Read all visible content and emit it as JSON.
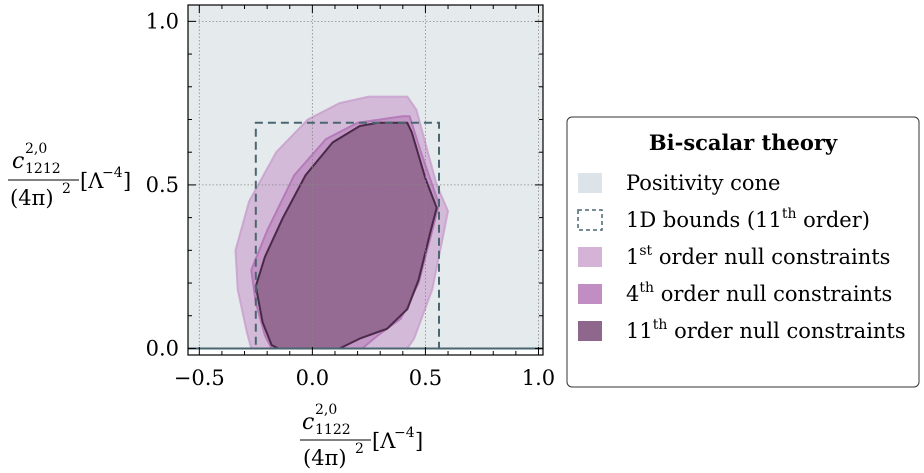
{
  "chart_data": {
    "type": "area",
    "xlim": [
      -0.55,
      1.02
    ],
    "ylim": [
      -0.02,
      1.05
    ],
    "xticks": [
      -0.5,
      0.0,
      0.5,
      1.0
    ],
    "yticks": [
      0.0,
      0.5,
      1.0
    ],
    "xtick_labels": [
      "−0.5",
      "0.0",
      "0.5",
      "1.0"
    ],
    "ytick_labels": [
      "0.0",
      "0.5",
      "1.0"
    ],
    "grid": true,
    "xlabel": {
      "num": "c",
      "sup": "2,0",
      "sub": "1122",
      "den": "(4π)",
      "den_sup": "2",
      "unit": "[Λ",
      "unit_sup": "−4",
      "unit_end": "]"
    },
    "ylabel": {
      "num": "c",
      "sup": "2,0",
      "sub": "1212",
      "den": "(4π)",
      "den_sup": "2",
      "unit": "[Λ",
      "unit_sup": "−4",
      "unit_end": "]"
    },
    "legend": {
      "title": "Bi-scalar theory",
      "placement": "right",
      "entries": [
        {
          "key": "cone",
          "text": "Positivity cone"
        },
        {
          "key": "bounds1d",
          "text": "1D bounds (11",
          "sup": "th",
          "tail": " order)"
        },
        {
          "key": "order1",
          "text": "1",
          "sup": "st",
          "tail": " order null constraints"
        },
        {
          "key": "order4",
          "text": "4",
          "sup": "th",
          "tail": " order null constraints"
        },
        {
          "key": "order11",
          "text": "11",
          "sup": "th",
          "tail": " order null constraints"
        }
      ]
    },
    "series": [
      {
        "key": "cone",
        "kind": "region",
        "color": "#cfd8df",
        "points": [
          [
            -0.55,
            0.0
          ],
          [
            1.02,
            0.0
          ],
          [
            1.02,
            1.05
          ],
          [
            -0.55,
            1.05
          ]
        ]
      },
      {
        "key": "bounds1d",
        "kind": "box",
        "color": "#4a6670",
        "points": [
          [
            -0.25,
            0.0
          ],
          [
            0.56,
            0.0
          ],
          [
            0.56,
            0.69
          ],
          [
            -0.25,
            0.69
          ]
        ]
      },
      {
        "key": "order1",
        "kind": "region",
        "color": "#c79ac9",
        "points": [
          [
            -0.34,
            0.3
          ],
          [
            -0.28,
            0.45
          ],
          [
            -0.16,
            0.6
          ],
          [
            -0.02,
            0.7
          ],
          [
            0.12,
            0.75
          ],
          [
            0.25,
            0.77
          ],
          [
            0.42,
            0.77
          ],
          [
            0.46,
            0.73
          ],
          [
            0.55,
            0.5
          ],
          [
            0.6,
            0.42
          ],
          [
            0.58,
            0.35
          ],
          [
            0.53,
            0.18
          ],
          [
            0.45,
            0.03
          ],
          [
            0.42,
            0.0
          ],
          [
            -0.27,
            0.0
          ],
          [
            -0.29,
            0.05
          ],
          [
            -0.33,
            0.18
          ],
          [
            -0.34,
            0.3
          ]
        ]
      },
      {
        "key": "order4",
        "kind": "region",
        "color": "#b57ab8",
        "points": [
          [
            -0.27,
            0.24
          ],
          [
            -0.2,
            0.36
          ],
          [
            -0.08,
            0.53
          ],
          [
            0.06,
            0.64
          ],
          [
            0.2,
            0.69
          ],
          [
            0.4,
            0.71
          ],
          [
            0.43,
            0.71
          ],
          [
            0.48,
            0.6
          ],
          [
            0.56,
            0.44
          ],
          [
            0.53,
            0.36
          ],
          [
            0.47,
            0.2
          ],
          [
            0.39,
            0.09
          ],
          [
            0.29,
            0.04
          ],
          [
            0.22,
            0.0
          ],
          [
            -0.18,
            0.0
          ],
          [
            -0.21,
            0.04
          ],
          [
            -0.25,
            0.14
          ],
          [
            -0.27,
            0.24
          ]
        ]
      },
      {
        "key": "order11",
        "kind": "region",
        "color": "#8a5f86",
        "points": [
          [
            -0.25,
            0.19
          ],
          [
            -0.21,
            0.28
          ],
          [
            -0.13,
            0.4
          ],
          [
            -0.03,
            0.53
          ],
          [
            0.09,
            0.63
          ],
          [
            0.21,
            0.68
          ],
          [
            0.29,
            0.69
          ],
          [
            0.42,
            0.69
          ],
          [
            0.44,
            0.66
          ],
          [
            0.5,
            0.52
          ],
          [
            0.55,
            0.43
          ],
          [
            0.52,
            0.35
          ],
          [
            0.47,
            0.21
          ],
          [
            0.42,
            0.12
          ],
          [
            0.33,
            0.06
          ],
          [
            0.21,
            0.03
          ],
          [
            0.12,
            0.0
          ],
          [
            -0.15,
            0.0
          ],
          [
            -0.18,
            0.01
          ],
          [
            -0.22,
            0.08
          ],
          [
            -0.25,
            0.19
          ]
        ]
      }
    ]
  }
}
